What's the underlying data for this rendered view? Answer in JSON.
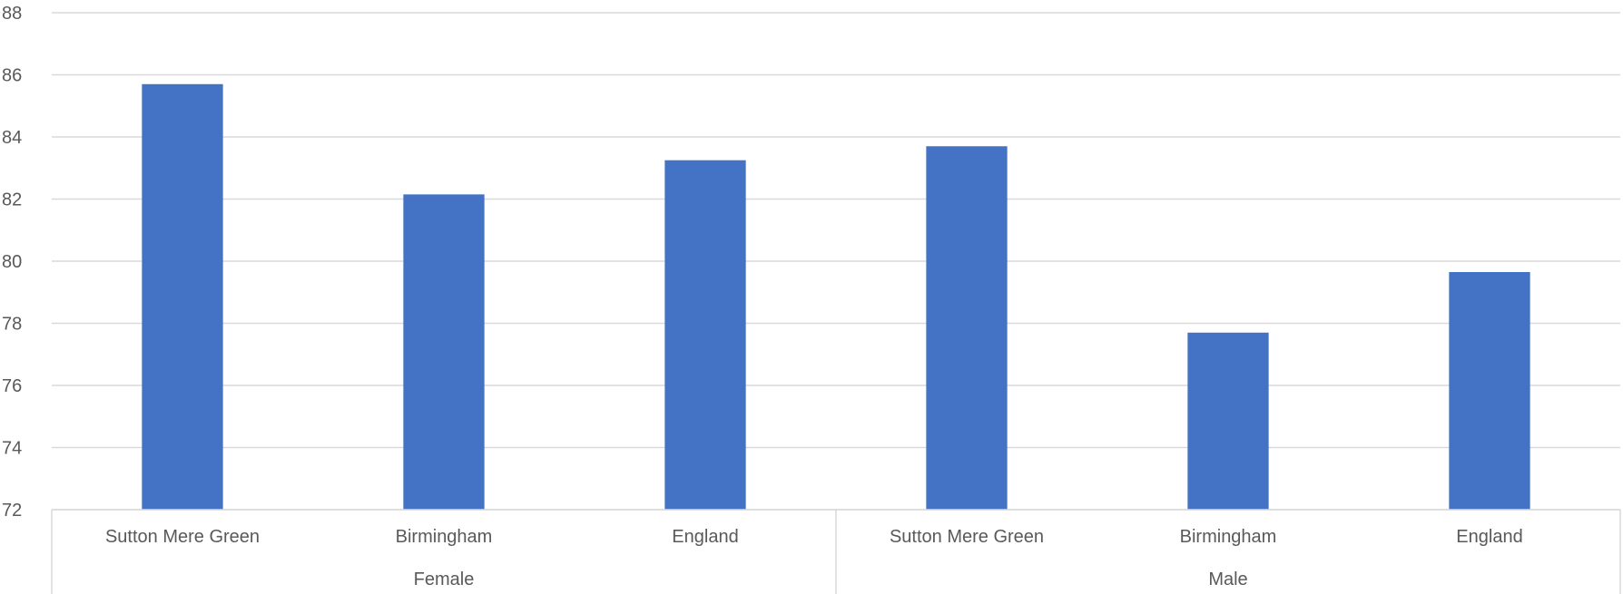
{
  "chart_data": {
    "type": "bar",
    "title": "",
    "xlabel": "",
    "ylabel": "",
    "ylim": [
      72,
      88
    ],
    "y_ticks": [
      72,
      74,
      76,
      78,
      80,
      82,
      84,
      86,
      88
    ],
    "y_tick_labels": [
      "72",
      "74",
      "76",
      "78",
      "80",
      "82",
      "84",
      "86",
      "88"
    ],
    "grid": true,
    "legend": "none",
    "bar_color": "#4472C4",
    "groups": [
      {
        "label": "Female",
        "categories": [
          "Sutton Mere Green",
          "Birmingham",
          "England"
        ],
        "values": [
          85.7,
          82.15,
          83.25
        ]
      },
      {
        "label": "Male",
        "categories": [
          "Sutton Mere Green",
          "Birmingham",
          "England"
        ],
        "values": [
          83.7,
          77.7,
          79.65
        ]
      }
    ]
  }
}
